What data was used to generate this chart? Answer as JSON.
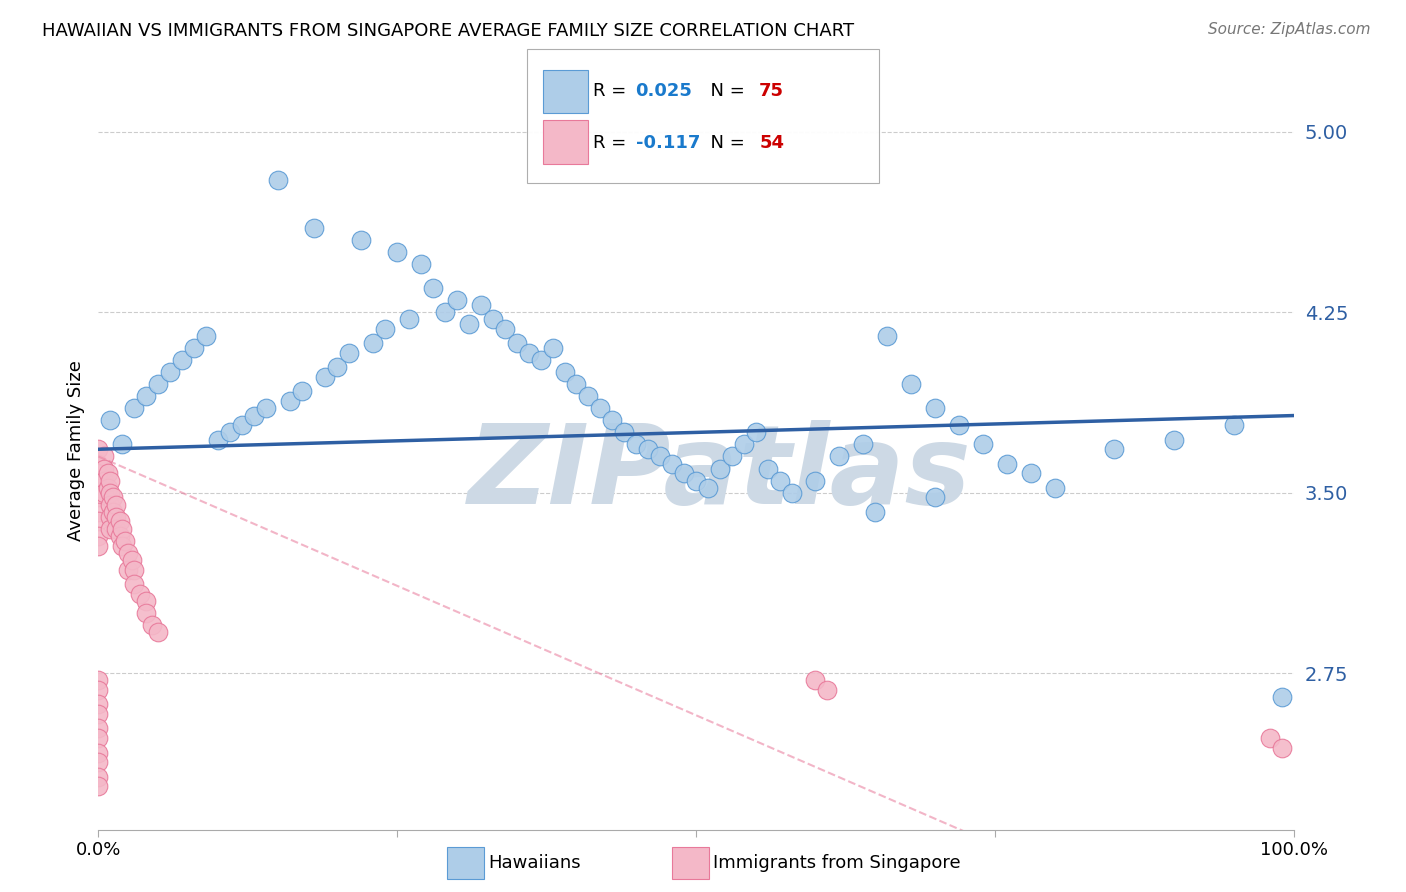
{
  "title": "HAWAIIAN VS IMMIGRANTS FROM SINGAPORE AVERAGE FAMILY SIZE CORRELATION CHART",
  "source": "Source: ZipAtlas.com",
  "ylabel": "Average Family Size",
  "yticks": [
    2.75,
    3.5,
    4.25,
    5.0
  ],
  "ylim": [
    2.1,
    5.25
  ],
  "xlim": [
    0.0,
    1.0
  ],
  "blue_R": 0.025,
  "blue_N": 75,
  "pink_R": -0.117,
  "pink_N": 54,
  "blue_color": "#aecde8",
  "blue_edge_color": "#5b9bd5",
  "blue_line_color": "#2e5fa3",
  "pink_color": "#f4b8c8",
  "pink_edge_color": "#e8799a",
  "pink_line_color": "#d44070",
  "watermark": "ZIPatlas",
  "watermark_color": "#cdd9e5",
  "legend_R_color": "#1a7acc",
  "legend_N_color": "#cc0000",
  "grid_color": "#cccccc",
  "blue_x": [
    0.02,
    0.15,
    0.18,
    0.22,
    0.25,
    0.27,
    0.28,
    0.29,
    0.3,
    0.31,
    0.32,
    0.33,
    0.34,
    0.35,
    0.36,
    0.37,
    0.38,
    0.39,
    0.4,
    0.41,
    0.42,
    0.43,
    0.44,
    0.45,
    0.46,
    0.47,
    0.48,
    0.49,
    0.5,
    0.51,
    0.52,
    0.53,
    0.54,
    0.55,
    0.56,
    0.57,
    0.58,
    0.6,
    0.62,
    0.64,
    0.01,
    0.03,
    0.04,
    0.05,
    0.06,
    0.07,
    0.08,
    0.09,
    0.1,
    0.11,
    0.12,
    0.13,
    0.14,
    0.16,
    0.17,
    0.19,
    0.2,
    0.21,
    0.23,
    0.24,
    0.26,
    0.66,
    0.68,
    0.7,
    0.72,
    0.74,
    0.76,
    0.78,
    0.8,
    0.85,
    0.9,
    0.95,
    0.99,
    0.7,
    0.65
  ],
  "blue_y": [
    3.7,
    4.8,
    4.6,
    4.55,
    4.5,
    4.45,
    4.35,
    4.25,
    4.3,
    4.2,
    4.28,
    4.22,
    4.18,
    4.12,
    4.08,
    4.05,
    4.1,
    4.0,
    3.95,
    3.9,
    3.85,
    3.8,
    3.75,
    3.7,
    3.68,
    3.65,
    3.62,
    3.58,
    3.55,
    3.52,
    3.6,
    3.65,
    3.7,
    3.75,
    3.6,
    3.55,
    3.5,
    3.55,
    3.65,
    3.7,
    3.8,
    3.85,
    3.9,
    3.95,
    4.0,
    4.05,
    4.1,
    4.15,
    3.72,
    3.75,
    3.78,
    3.82,
    3.85,
    3.88,
    3.92,
    3.98,
    4.02,
    4.08,
    4.12,
    4.18,
    4.22,
    4.15,
    3.95,
    3.85,
    3.78,
    3.7,
    3.62,
    3.58,
    3.52,
    3.68,
    3.72,
    3.78,
    2.65,
    3.48,
    3.42
  ],
  "pink_x": [
    0.0,
    0.0,
    0.0,
    0.0,
    0.0,
    0.0,
    0.0,
    0.0,
    0.0,
    0.005,
    0.005,
    0.005,
    0.005,
    0.008,
    0.008,
    0.01,
    0.01,
    0.01,
    0.01,
    0.01,
    0.012,
    0.012,
    0.015,
    0.015,
    0.015,
    0.018,
    0.018,
    0.02,
    0.02,
    0.022,
    0.025,
    0.025,
    0.028,
    0.03,
    0.03,
    0.035,
    0.04,
    0.04,
    0.045,
    0.05,
    0.0,
    0.0,
    0.0,
    0.0,
    0.0,
    0.0,
    0.0,
    0.0,
    0.0,
    0.0,
    0.6,
    0.61,
    0.98,
    0.99
  ],
  "pink_y": [
    3.68,
    3.62,
    3.58,
    3.52,
    3.48,
    3.42,
    3.38,
    3.32,
    3.28,
    3.65,
    3.6,
    3.55,
    3.5,
    3.58,
    3.52,
    3.55,
    3.5,
    3.45,
    3.4,
    3.35,
    3.48,
    3.42,
    3.45,
    3.4,
    3.35,
    3.38,
    3.32,
    3.35,
    3.28,
    3.3,
    3.25,
    3.18,
    3.22,
    3.18,
    3.12,
    3.08,
    3.05,
    3.0,
    2.95,
    2.92,
    2.72,
    2.68,
    2.62,
    2.58,
    2.52,
    2.48,
    2.42,
    2.38,
    2.32,
    2.28,
    2.72,
    2.68,
    2.48,
    2.44
  ]
}
